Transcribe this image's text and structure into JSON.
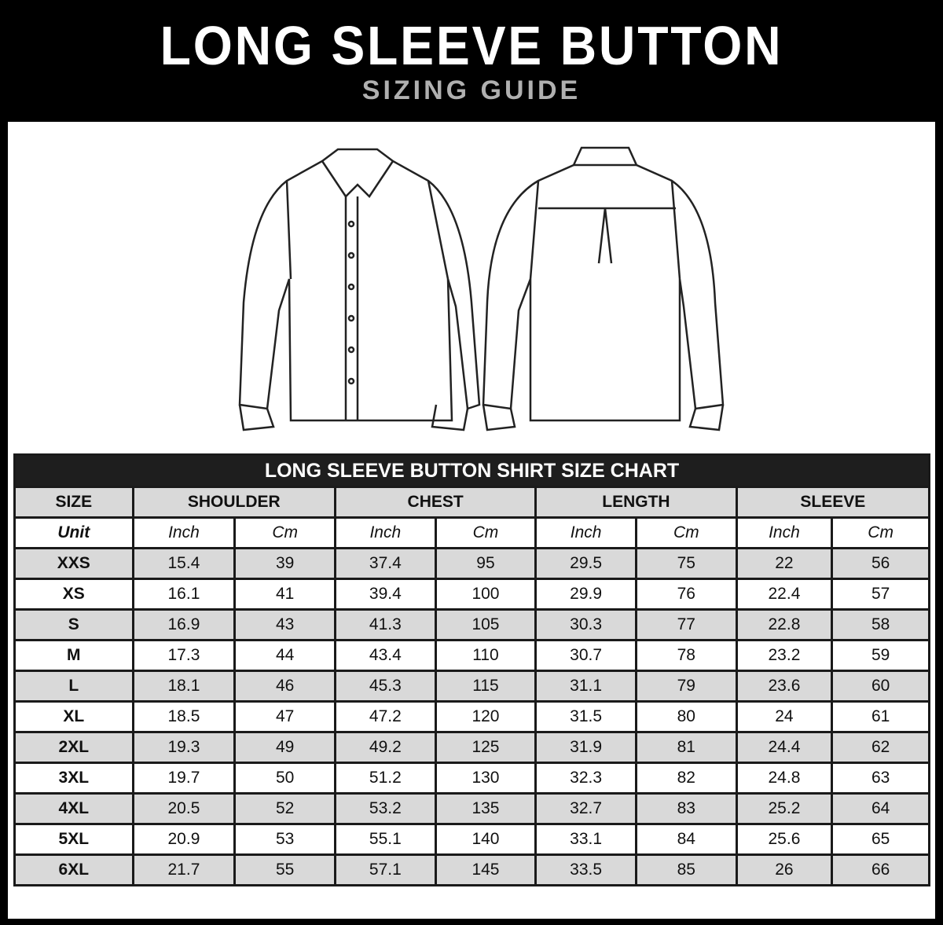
{
  "header": {
    "title": "LONG SLEEVE BUTTON",
    "subtitle": "SIZING GUIDE"
  },
  "table": {
    "caption": "LONG SLEEVE BUTTON SHIRT SIZE CHART",
    "groups": [
      "SIZE",
      "SHOULDER",
      "CHEST",
      "LENGTH",
      "SLEEVE"
    ],
    "units": [
      "Unit",
      "Inch",
      "Cm",
      "Inch",
      "Cm",
      "Inch",
      "Cm",
      "Inch",
      "Cm"
    ],
    "rows": [
      [
        "XXS",
        "15.4",
        "39",
        "37.4",
        "95",
        "29.5",
        "75",
        "22",
        "56"
      ],
      [
        "XS",
        "16.1",
        "41",
        "39.4",
        "100",
        "29.9",
        "76",
        "22.4",
        "57"
      ],
      [
        "S",
        "16.9",
        "43",
        "41.3",
        "105",
        "30.3",
        "77",
        "22.8",
        "58"
      ],
      [
        "M",
        "17.3",
        "44",
        "43.4",
        "110",
        "30.7",
        "78",
        "23.2",
        "59"
      ],
      [
        "L",
        "18.1",
        "46",
        "45.3",
        "115",
        "31.1",
        "79",
        "23.6",
        "60"
      ],
      [
        "XL",
        "18.5",
        "47",
        "47.2",
        "120",
        "31.5",
        "80",
        "24",
        "61"
      ],
      [
        "2XL",
        "19.3",
        "49",
        "49.2",
        "125",
        "31.9",
        "81",
        "24.4",
        "62"
      ],
      [
        "3XL",
        "19.7",
        "50",
        "51.2",
        "130",
        "32.3",
        "82",
        "24.8",
        "63"
      ],
      [
        "4XL",
        "20.5",
        "52",
        "53.2",
        "135",
        "32.7",
        "83",
        "25.2",
        "64"
      ],
      [
        "5XL",
        "20.9",
        "53",
        "55.1",
        "140",
        "33.1",
        "84",
        "25.6",
        "65"
      ],
      [
        "6XL",
        "21.7",
        "55",
        "57.1",
        "145",
        "33.5",
        "85",
        "26",
        "66"
      ]
    ]
  }
}
